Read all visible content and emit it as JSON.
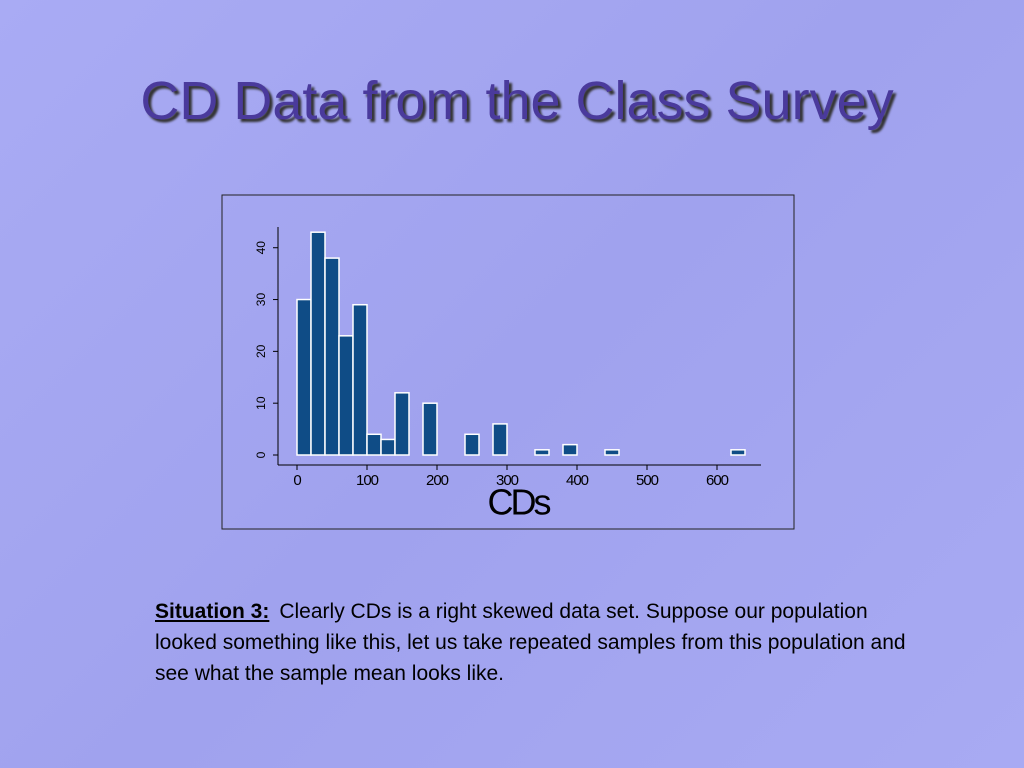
{
  "slide_title": "CD Data from the Class Survey",
  "chart_data": {
    "type": "histogram",
    "x_label": "CDs",
    "bins": [
      0,
      20,
      40,
      60,
      80,
      100,
      120,
      140,
      160,
      180,
      200,
      220,
      240,
      260,
      280,
      300,
      320,
      340,
      360,
      380,
      400,
      420,
      440,
      460,
      480,
      500,
      520,
      540,
      560,
      580,
      600,
      620,
      640
    ],
    "counts": [
      30,
      43,
      38,
      23,
      29,
      4,
      3,
      12,
      0,
      10,
      0,
      0,
      4,
      0,
      6,
      0,
      0,
      1,
      0,
      2,
      0,
      0,
      1,
      0,
      0,
      0,
      0,
      0,
      0,
      0,
      0,
      1
    ],
    "color": "#0f4c86",
    "xlim": [
      -20,
      660
    ],
    "xticks": [
      0,
      100,
      200,
      300,
      400,
      500,
      600
    ],
    "ylim": [
      0,
      44
    ],
    "yticks": [
      0,
      10,
      20,
      30,
      40
    ]
  },
  "caption": {
    "label": "Situation 3:",
    "text": "Clearly CDs is a right skewed data set.  Suppose our population looked something like this, let us take repeated samples from this population and see what the sample mean looks like."
  }
}
